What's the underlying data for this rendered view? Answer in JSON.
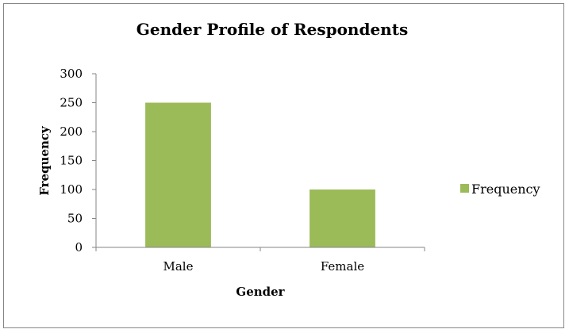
{
  "chart_data": {
    "type": "bar",
    "title": "Gender Profile of Respondents",
    "xlabel": "Gender",
    "ylabel": "Frequency",
    "categories": [
      "Male",
      "Female"
    ],
    "series": [
      {
        "name": "Frequency",
        "values": [
          250,
          100
        ],
        "color": "#9bbb59"
      }
    ],
    "ylim": [
      0,
      300
    ],
    "yticks": [
      0,
      50,
      100,
      150,
      200,
      250,
      300
    ],
    "grid": false,
    "legend": "right"
  }
}
